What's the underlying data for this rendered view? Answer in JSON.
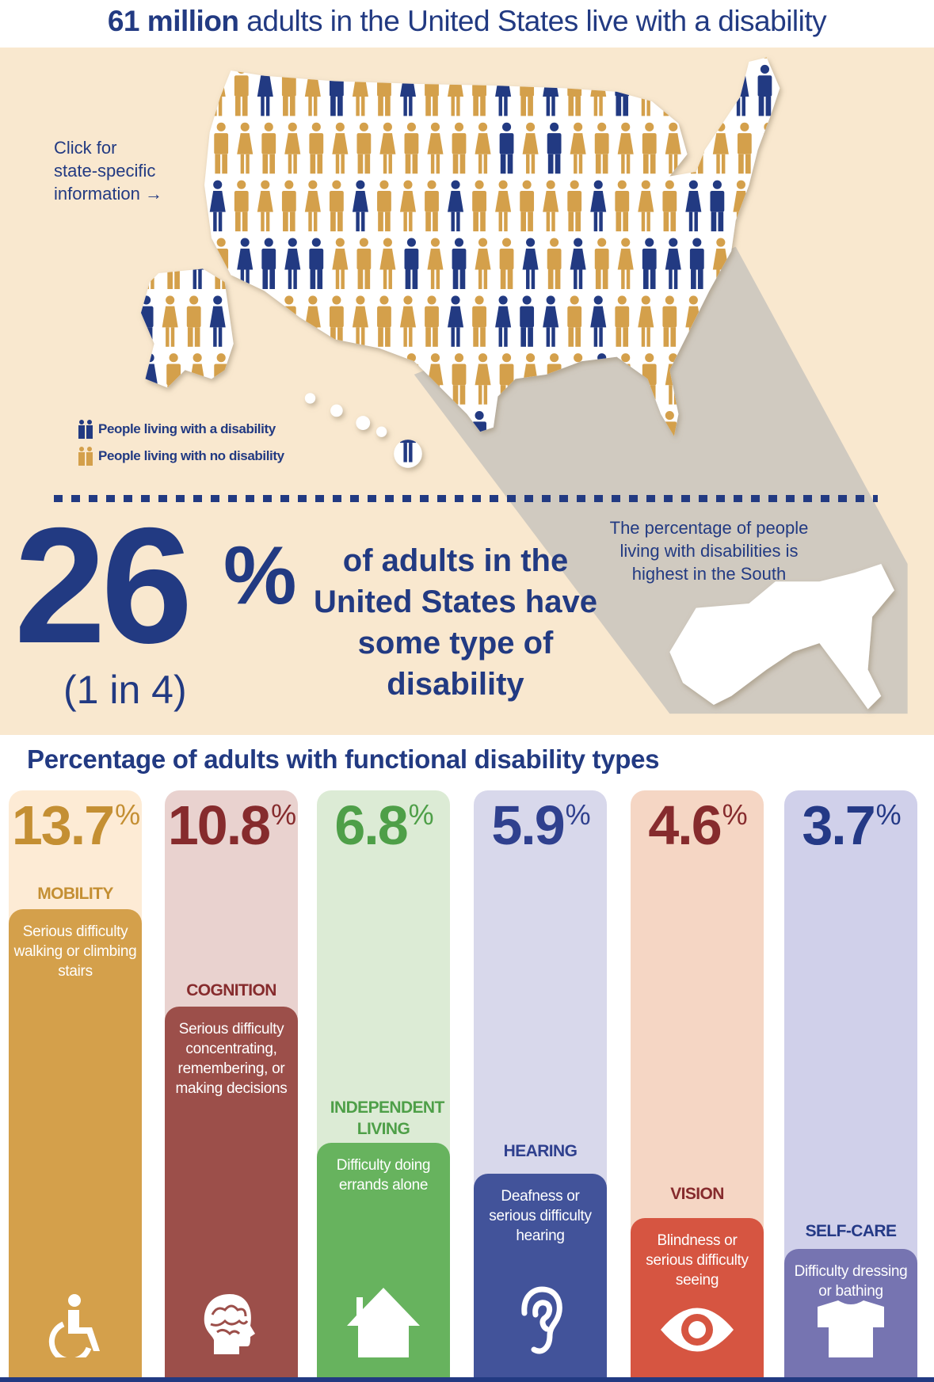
{
  "header": {
    "title_bold": "61 million",
    "title_rest": "adults in the United States live with a disability"
  },
  "map": {
    "click_prompt": [
      "Click for",
      "state-specific",
      "information →"
    ],
    "legend": [
      {
        "label": "People living with a disability",
        "color": "#223a82"
      },
      {
        "label": "People living with no disability",
        "color": "#d4a04b"
      }
    ],
    "south_note": "The percentage of people living with disabilities is highest in the South"
  },
  "summary": {
    "percent": "26",
    "percent_sign": "%",
    "ratio": "(1 in 4)",
    "statement": "of adults in the United States have some type of disability"
  },
  "types_section": {
    "title": "Percentage of adults with functional disability types",
    "types": [
      {
        "value": "13.7",
        "sign": "%",
        "name": "MOBILITY",
        "desc": "Serious difficulty walking or climbing stairs",
        "icon": "wheelchair-icon",
        "light": "#fdebd5",
        "dark": "#d4a04b",
        "text": "#c48f33"
      },
      {
        "value": "10.8",
        "sign": "%",
        "name": "COGNITION",
        "desc": "Serious difficulty concentrating, remembering, or making decisions",
        "icon": "brain-icon",
        "light": "#e9d2cf",
        "dark": "#9c4f4a",
        "text": "#862b2d"
      },
      {
        "value": "6.8",
        "sign": "%",
        "name": "INDEPENDENT LIVING",
        "desc": "Difficulty doing errands alone",
        "icon": "house-icon",
        "light": "#dcebd5",
        "dark": "#67b35e",
        "text": "#4e9f48"
      },
      {
        "value": "5.9",
        "sign": "%",
        "name": "HEARING",
        "desc": "Deafness or serious difficulty hearing",
        "icon": "ear-icon",
        "light": "#d8d8eb",
        "dark": "#42539a",
        "text": "#2f408e"
      },
      {
        "value": "4.6",
        "sign": "%",
        "name": "VISION",
        "desc": "Blindness or serious difficulty seeing",
        "icon": "eye-icon",
        "light": "#f5d6c4",
        "dark": "#d65541",
        "text": "#862b2d"
      },
      {
        "value": "3.7",
        "sign": "%",
        "name": "SELF-CARE",
        "desc": "Difficulty dressing or bathing",
        "icon": "shirt-icon",
        "light": "#d0d0ea",
        "dark": "#7674b1",
        "text": "#243986"
      }
    ]
  }
}
